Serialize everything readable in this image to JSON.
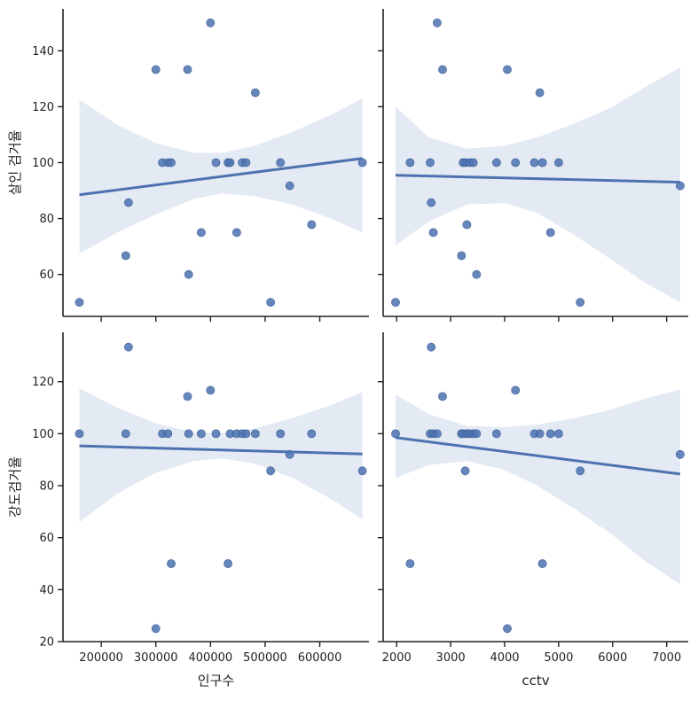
{
  "chart_data": {
    "type": "scatter",
    "layout": "2x2 facet grid, shared x per column, shared y per row, linear regression with 95% CI",
    "columns": [
      {
        "xlabel": "인구수",
        "xlim": [
          130000,
          690000
        ],
        "xticks": [
          200000,
          300000,
          400000,
          500000,
          600000
        ],
        "xtick_labels": [
          "200000",
          "300000",
          "400000",
          "500000",
          "600000"
        ],
        "x": [
          160000,
          245000,
          250000,
          300000,
          312000,
          322000,
          328000,
          358000,
          360000,
          383000,
          400000,
          410000,
          432000,
          436000,
          448000,
          458000,
          465000,
          482000,
          510000,
          528000,
          545000,
          585000,
          678000
        ]
      },
      {
        "xlabel": "cctv",
        "xlim": [
          1750,
          7400
        ],
        "xticks": [
          2000,
          3000,
          4000,
          5000,
          6000,
          7000
        ],
        "xtick_labels": [
          "2000",
          "3000",
          "4000",
          "5000",
          "6000",
          "7000"
        ],
        "x": [
          1980,
          2250,
          2620,
          2640,
          2680,
          2750,
          2850,
          3200,
          3230,
          3270,
          3300,
          3350,
          3420,
          3480,
          3850,
          4050,
          4200,
          4550,
          4650,
          4700,
          4850,
          5000,
          5400,
          7250
        ]
      }
    ],
    "rows": [
      {
        "ylabel": "살인 검거율",
        "ylim": [
          45,
          155
        ],
        "yticks": [
          60,
          80,
          100,
          120,
          140
        ],
        "ytick_labels": [
          "60",
          "80",
          "100",
          "120",
          "140"
        ],
        "panels": [
          {
            "y": [
              50,
              66.7,
              85.7,
              133.3,
              100,
              100,
              100,
              133.3,
              60,
              75,
              150,
              100,
              100,
              100,
              75,
              100,
              100,
              125,
              50,
              100,
              91.7,
              77.8,
              100
            ],
            "fit_endpoints": [
              [
                160000,
                88.5
              ],
              [
                678000,
                101.5
              ]
            ],
            "ci_upper": [
              [
                160000,
                122.5
              ],
              [
                230000,
                113.5
              ],
              [
                300000,
                107
              ],
              [
                370000,
                103.5
              ],
              [
                420000,
                103.5
              ],
              [
                480000,
                106
              ],
              [
                550000,
                111
              ],
              [
                620000,
                117
              ],
              [
                678000,
                123
              ]
            ],
            "ci_lower": [
              [
                160000,
                67.5
              ],
              [
                230000,
                75
              ],
              [
                300000,
                81.5
              ],
              [
                370000,
                87
              ],
              [
                420000,
                89
              ],
              [
                480000,
                88
              ],
              [
                550000,
                85
              ],
              [
                620000,
                80
              ],
              [
                678000,
                75
              ]
            ]
          },
          {
            "y": [
              50,
              100,
              100,
              85.7,
              75,
              150,
              133.3,
              66.7,
              100,
              100,
              77.8,
              100,
              100,
              60,
              100,
              133.3,
              100,
              100,
              125,
              100,
              75,
              100,
              50,
              91.7
            ],
            "fit_endpoints": [
              [
                1980,
                95.5
              ],
              [
                7250,
                93
              ]
            ],
            "ci_upper": [
              [
                1980,
                120
              ],
              [
                2600,
                109
              ],
              [
                3300,
                105
              ],
              [
                4000,
                106
              ],
              [
                4600,
                109
              ],
              [
                5300,
                114
              ],
              [
                6000,
                120
              ],
              [
                6600,
                127
              ],
              [
                7250,
                134
              ]
            ],
            "ci_lower": [
              [
                1980,
                70.5
              ],
              [
                2600,
                79
              ],
              [
                3300,
                85
              ],
              [
                4000,
                85.5
              ],
              [
                4600,
                82
              ],
              [
                5300,
                74
              ],
              [
                6000,
                65
              ],
              [
                6600,
                57
              ],
              [
                7250,
                50
              ]
            ]
          }
        ]
      },
      {
        "ylabel": "강도검거율",
        "ylim": [
          20,
          139
        ],
        "yticks": [
          20,
          40,
          60,
          80,
          100,
          120
        ],
        "ytick_labels": [
          "20",
          "40",
          "60",
          "80",
          "100",
          "120"
        ],
        "panels": [
          {
            "y": [
              100,
              100,
              133.3,
              25,
              100,
              100,
              50,
              114.3,
              100,
              100,
              116.7,
              100,
              50,
              100,
              100,
              100,
              100,
              100,
              85.7,
              100,
              92,
              100,
              85.7
            ],
            "fit_endpoints": [
              [
                160000,
                95.3
              ],
              [
                678000,
                92.2
              ]
            ],
            "ci_upper": [
              [
                160000,
                117.5
              ],
              [
                230000,
                110
              ],
              [
                300000,
                104
              ],
              [
                370000,
                100.5
              ],
              [
                420000,
                100.2
              ],
              [
                480000,
                102
              ],
              [
                550000,
                106
              ],
              [
                620000,
                111
              ],
              [
                678000,
                116
              ]
            ],
            "ci_lower": [
              [
                160000,
                66
              ],
              [
                230000,
                77
              ],
              [
                300000,
                85
              ],
              [
                370000,
                89.5
              ],
              [
                420000,
                90.5
              ],
              [
                480000,
                88.5
              ],
              [
                550000,
                83
              ],
              [
                620000,
                75
              ],
              [
                678000,
                67
              ]
            ]
          },
          {
            "y": [
              100,
              50,
              100,
              133.3,
              100,
              100,
              114.3,
              100,
              100,
              85.7,
              100,
              100,
              100,
              100,
              100,
              25,
              116.7,
              100,
              100,
              50,
              100,
              100,
              85.7,
              92
            ],
            "fit_endpoints": [
              [
                1980,
                98.5
              ],
              [
                7250,
                84.5
              ]
            ],
            "ci_upper": [
              [
                1980,
                115
              ],
              [
                2600,
                107.5
              ],
              [
                3300,
                103
              ],
              [
                4000,
                102.5
              ],
              [
                4600,
                103.5
              ],
              [
                5300,
                106
              ],
              [
                6000,
                109.5
              ],
              [
                6600,
                113.5
              ],
              [
                7250,
                117
              ]
            ],
            "ci_lower": [
              [
                1980,
                83
              ],
              [
                2600,
                88
              ],
              [
                3300,
                89.5
              ],
              [
                4000,
                86
              ],
              [
                4600,
                80
              ],
              [
                5300,
                71
              ],
              [
                6000,
                61
              ],
              [
                6600,
                51
              ],
              [
                7250,
                42
              ]
            ]
          }
        ]
      }
    ],
    "colors": {
      "points": "#4c72b0",
      "line": "#4c72b0",
      "band": "#4c72b0",
      "axes": "#222222"
    },
    "grid": false,
    "legend": "none"
  }
}
